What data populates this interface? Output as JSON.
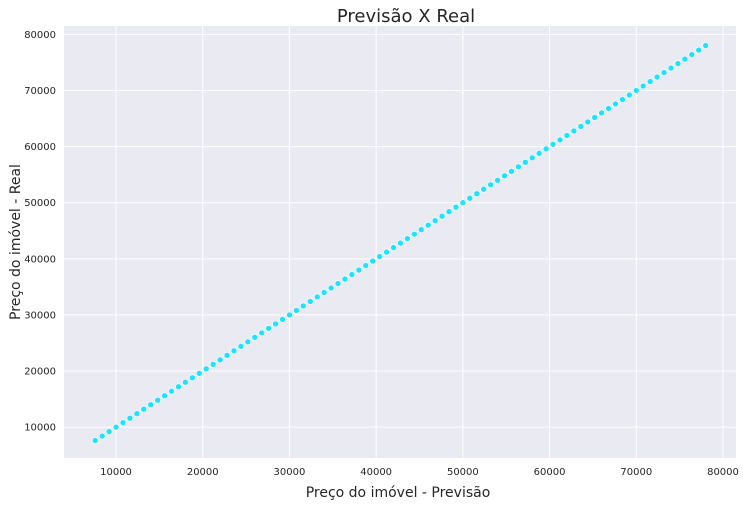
{
  "chart_data": {
    "type": "scatter",
    "title": "Previsão X Real",
    "xlabel": "Preço do imóvel - Previsão",
    "ylabel": "Preço do imóvel - Real",
    "xlim": [
      4000,
      81500
    ],
    "ylim": [
      4500,
      81500
    ],
    "xticks": [
      10000,
      20000,
      30000,
      40000,
      50000,
      60000,
      70000,
      80000
    ],
    "yticks": [
      10000,
      20000,
      30000,
      40000,
      50000,
      60000,
      70000,
      80000
    ],
    "xtick_labels": [
      "10000",
      "20000",
      "30000",
      "40000",
      "50000",
      "60000",
      "70000",
      "80000"
    ],
    "ytick_labels": [
      "10000",
      "20000",
      "30000",
      "40000",
      "50000",
      "60000",
      "70000",
      "80000"
    ],
    "grid": true,
    "colors": {
      "points": "#1ee3ff",
      "point_edge": "#ffffff",
      "background": "#eaeaf2",
      "grid": "#ffffff"
    },
    "series": [
      {
        "values_x": [
          7600,
          8400,
          9200,
          10000,
          10800,
          11600,
          12400,
          13200,
          14000,
          14800,
          15600,
          16400,
          17200,
          18000,
          18800,
          19600,
          20400,
          21200,
          22000,
          22800,
          23600,
          24400,
          25200,
          26000,
          26800,
          27600,
          28400,
          29200,
          30000,
          30800,
          31600,
          32400,
          33200,
          34000,
          34800,
          35600,
          36400,
          37200,
          38000,
          38800,
          39600,
          40400,
          41200,
          42000,
          42800,
          43600,
          44400,
          45200,
          46000,
          46800,
          47600,
          48400,
          49200,
          50000,
          50800,
          51600,
          52400,
          53200,
          54000,
          54800,
          55600,
          56400,
          57200,
          58000,
          58800,
          59600,
          60400,
          61200,
          62000,
          62800,
          63600,
          64400,
          65200,
          66000,
          66800,
          67600,
          68400,
          69200,
          70000,
          70800,
          71600,
          72400,
          73200,
          74000,
          74800,
          75600,
          76400,
          77200,
          78000
        ],
        "values_y": [
          7600,
          8400,
          9200,
          10000,
          10800,
          11600,
          12400,
          13200,
          14000,
          14800,
          15600,
          16400,
          17200,
          18000,
          18800,
          19600,
          20400,
          21200,
          22000,
          22800,
          23600,
          24400,
          25200,
          26000,
          26800,
          27600,
          28400,
          29200,
          30000,
          30800,
          31600,
          32400,
          33200,
          34000,
          34800,
          35600,
          36400,
          37200,
          38000,
          38800,
          39600,
          40400,
          41200,
          42000,
          42800,
          43600,
          44400,
          45200,
          46000,
          46800,
          47600,
          48400,
          49200,
          50000,
          50800,
          51600,
          52400,
          53200,
          54000,
          54800,
          55600,
          56400,
          57200,
          58000,
          58800,
          59600,
          60400,
          61200,
          62000,
          62800,
          63600,
          64400,
          65200,
          66000,
          66800,
          67600,
          68400,
          69200,
          70000,
          70800,
          71600,
          72400,
          73200,
          74000,
          74800,
          75600,
          76400,
          77200,
          78000
        ]
      }
    ]
  }
}
